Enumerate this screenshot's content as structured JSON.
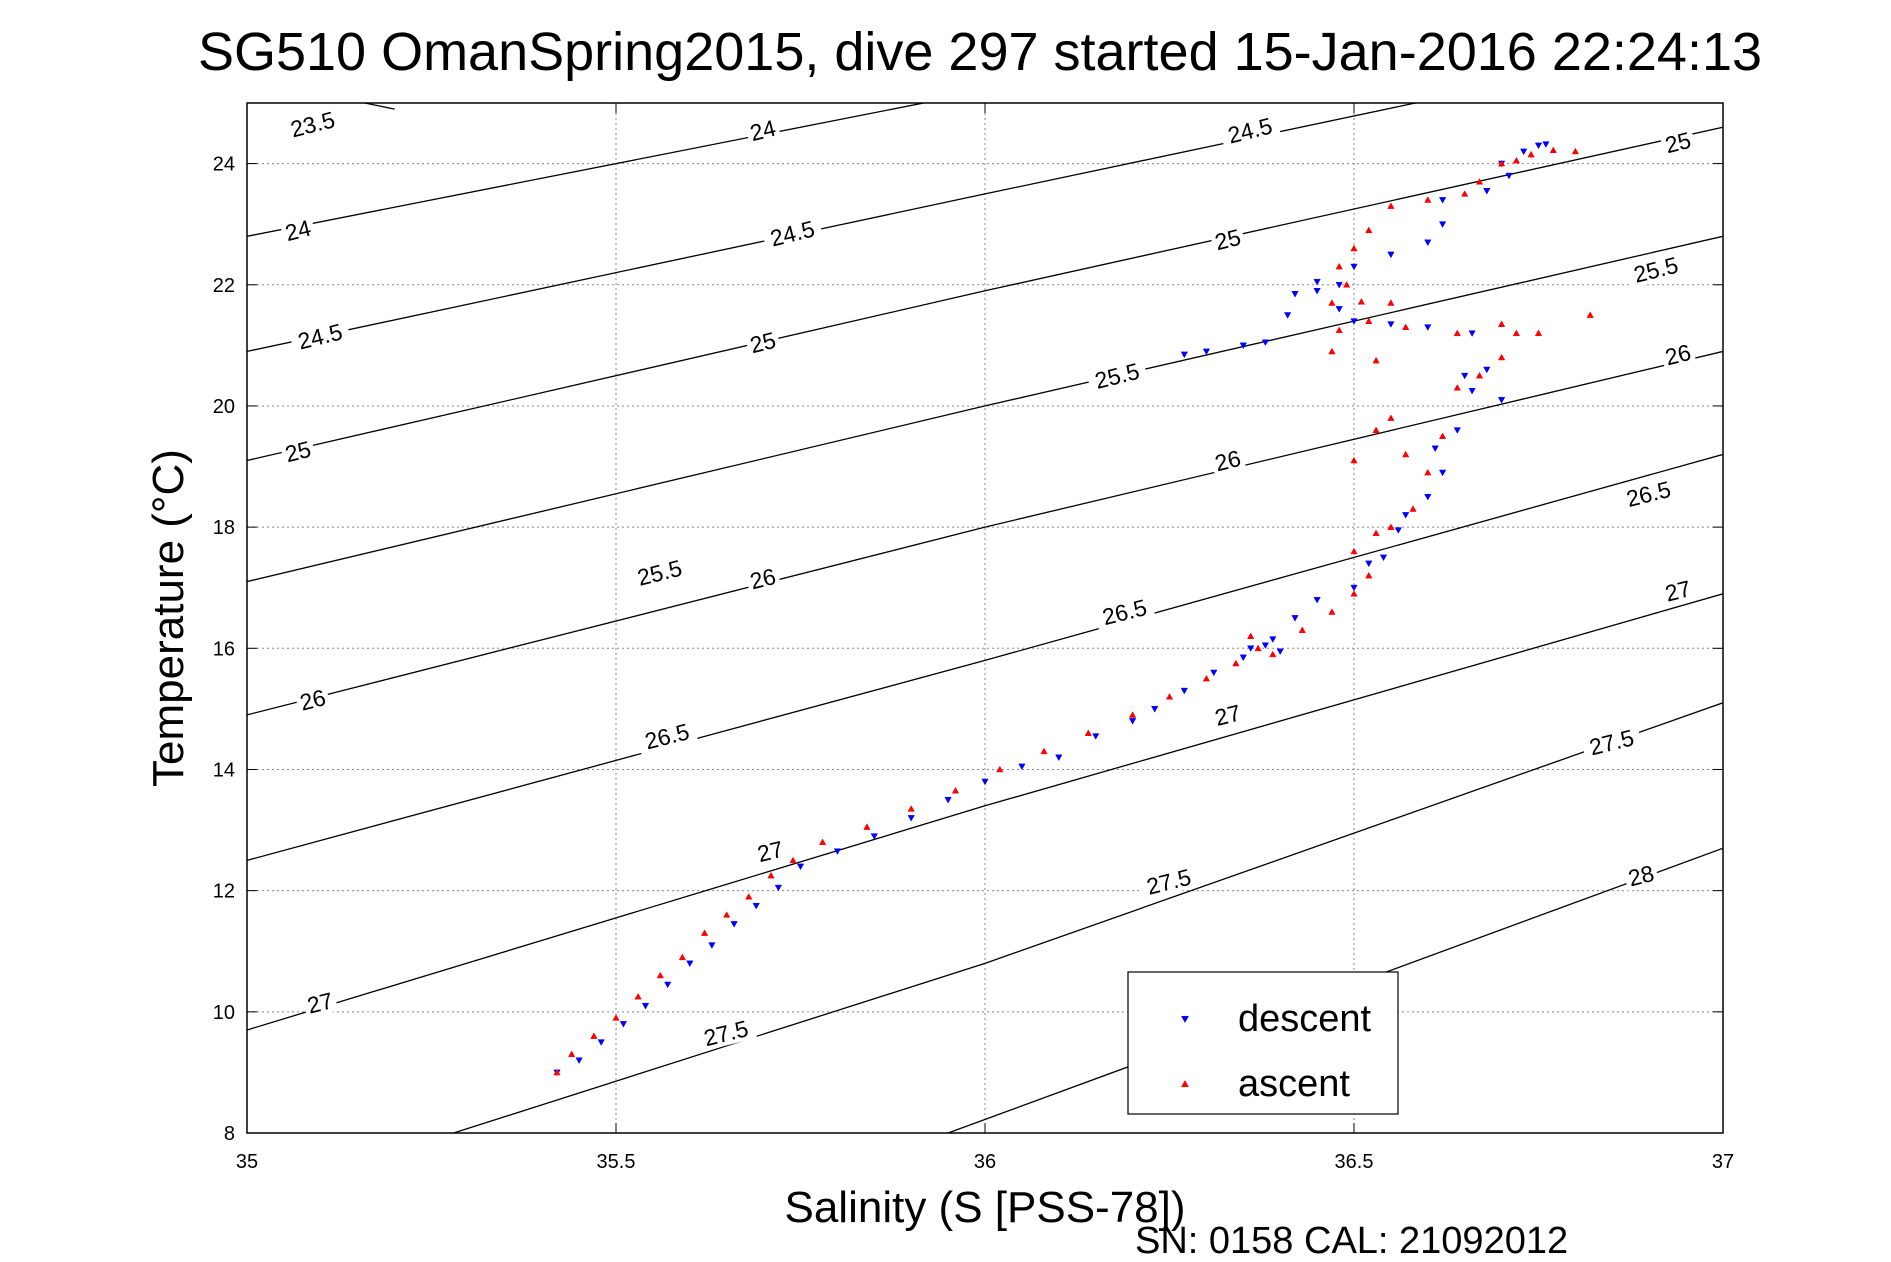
{
  "chart_data": {
    "type": "scatter",
    "title": "SG510 OmanSpring2015, dive 297 started 15-Jan-2016 22:24:13",
    "xlabel": "Salinity (S [PSS-78])",
    "ylabel": "Temperature (°C)",
    "xlim": [
      35,
      37
    ],
    "ylim": [
      8,
      25
    ],
    "xticks": [
      "35",
      "35.5",
      "36",
      "36.5",
      "37"
    ],
    "yticks": [
      "8",
      "10",
      "12",
      "14",
      "16",
      "18",
      "20",
      "22",
      "24"
    ],
    "grid": true,
    "legend_position": "lower-right",
    "footer": "SN: 0158  CAL: 21092012",
    "isopycnals": [
      {
        "label": "23.5",
        "points": [
          [
            35.0,
            25.4
          ],
          [
            35.2,
            24.9
          ]
        ]
      },
      {
        "label": "24",
        "points": [
          [
            35.0,
            22.8
          ],
          [
            36.0,
            25.2
          ]
        ]
      },
      {
        "label": "24.5",
        "points": [
          [
            35.0,
            20.9
          ],
          [
            36.0,
            23.5
          ],
          [
            36.7,
            25.3
          ]
        ]
      },
      {
        "label": "25",
        "points": [
          [
            35.0,
            19.1
          ],
          [
            36.0,
            21.9
          ],
          [
            37.0,
            24.6
          ]
        ]
      },
      {
        "label": "25.5",
        "points": [
          [
            35.0,
            17.1
          ],
          [
            36.0,
            20.0
          ],
          [
            37.0,
            22.8
          ]
        ]
      },
      {
        "label": "26",
        "points": [
          [
            35.0,
            14.9
          ],
          [
            36.0,
            18.0
          ],
          [
            37.0,
            20.9
          ]
        ]
      },
      {
        "label": "26.5",
        "points": [
          [
            35.0,
            12.5
          ],
          [
            36.0,
            15.8
          ],
          [
            37.0,
            19.2
          ]
        ]
      },
      {
        "label": "27",
        "points": [
          [
            35.0,
            9.7
          ],
          [
            36.0,
            13.4
          ],
          [
            37.0,
            16.9
          ]
        ]
      },
      {
        "label": "27.5",
        "points": [
          [
            35.28,
            8.0
          ],
          [
            36.0,
            10.8
          ],
          [
            37.0,
            15.1
          ]
        ]
      },
      {
        "label": "28",
        "points": [
          [
            35.95,
            8.0
          ],
          [
            37.0,
            12.7
          ]
        ]
      }
    ],
    "isopycnal_labels": [
      {
        "text": "23.5",
        "x": 35.09,
        "y": 24.6
      },
      {
        "text": "24",
        "x": 35.07,
        "y": 22.85
      },
      {
        "text": "24.5",
        "x": 35.1,
        "y": 21.1
      },
      {
        "text": "25",
        "x": 35.07,
        "y": 19.2
      },
      {
        "text": "25.5",
        "x": 35.56,
        "y": 17.2
      },
      {
        "text": "26",
        "x": 35.09,
        "y": 15.1
      },
      {
        "text": "26.5",
        "x": 35.57,
        "y": 14.5
      },
      {
        "text": "27",
        "x": 35.1,
        "y": 10.1
      },
      {
        "text": "27.5",
        "x": 35.65,
        "y": 9.6
      },
      {
        "text": "24",
        "x": 35.7,
        "y": 24.5
      },
      {
        "text": "24.5",
        "x": 35.74,
        "y": 22.8
      },
      {
        "text": "25",
        "x": 35.7,
        "y": 21.0
      },
      {
        "text": "25.5",
        "x": 36.18,
        "y": 20.45
      },
      {
        "text": "26",
        "x": 35.7,
        "y": 17.1
      },
      {
        "text": "26.5",
        "x": 36.19,
        "y": 16.55
      },
      {
        "text": "27",
        "x": 35.71,
        "y": 12.6
      },
      {
        "text": "27.5",
        "x": 36.25,
        "y": 12.1
      },
      {
        "text": "24.5",
        "x": 36.36,
        "y": 24.5
      },
      {
        "text": "25",
        "x": 36.33,
        "y": 22.7
      },
      {
        "text": "26",
        "x": 36.33,
        "y": 19.05
      },
      {
        "text": "27",
        "x": 36.33,
        "y": 14.85
      },
      {
        "text": "25",
        "x": 36.94,
        "y": 24.3
      },
      {
        "text": "25.5",
        "x": 36.91,
        "y": 22.2
      },
      {
        "text": "26",
        "x": 36.94,
        "y": 20.8
      },
      {
        "text": "26.5",
        "x": 36.9,
        "y": 18.5
      },
      {
        "text": "27",
        "x": 36.94,
        "y": 16.9
      },
      {
        "text": "27.5",
        "x": 36.85,
        "y": 14.4
      },
      {
        "text": "28",
        "x": 36.89,
        "y": 12.2
      }
    ],
    "series": [
      {
        "name": "descent",
        "color": "#0000ff",
        "marker": "triangle-down",
        "points": [
          [
            35.42,
            9.0
          ],
          [
            35.45,
            9.2
          ],
          [
            35.48,
            9.5
          ],
          [
            35.51,
            9.8
          ],
          [
            35.54,
            10.1
          ],
          [
            35.57,
            10.45
          ],
          [
            35.6,
            10.8
          ],
          [
            35.63,
            11.1
          ],
          [
            35.66,
            11.45
          ],
          [
            35.69,
            11.75
          ],
          [
            35.72,
            12.05
          ],
          [
            35.75,
            12.4
          ],
          [
            35.8,
            12.65
          ],
          [
            35.85,
            12.9
          ],
          [
            35.9,
            13.2
          ],
          [
            35.95,
            13.5
          ],
          [
            36.0,
            13.8
          ],
          [
            36.05,
            14.05
          ],
          [
            36.1,
            14.2
          ],
          [
            36.15,
            14.55
          ],
          [
            36.2,
            14.8
          ],
          [
            36.23,
            15.0
          ],
          [
            36.27,
            15.3
          ],
          [
            36.31,
            15.6
          ],
          [
            36.35,
            15.85
          ],
          [
            36.38,
            16.05
          ],
          [
            36.39,
            16.15
          ],
          [
            36.36,
            16.0
          ],
          [
            36.4,
            15.95
          ],
          [
            36.42,
            16.5
          ],
          [
            36.45,
            16.8
          ],
          [
            36.5,
            17.0
          ],
          [
            36.52,
            17.4
          ],
          [
            36.54,
            17.5
          ],
          [
            36.56,
            17.95
          ],
          [
            36.57,
            18.2
          ],
          [
            36.6,
            18.5
          ],
          [
            36.62,
            18.9
          ],
          [
            36.61,
            19.3
          ],
          [
            36.64,
            19.6
          ],
          [
            36.65,
            20.5
          ],
          [
            36.66,
            20.25
          ],
          [
            36.7,
            20.1
          ],
          [
            36.68,
            20.6
          ],
          [
            36.66,
            21.2
          ],
          [
            36.6,
            21.3
          ],
          [
            36.55,
            21.35
          ],
          [
            36.5,
            21.4
          ],
          [
            36.48,
            21.6
          ],
          [
            36.45,
            21.9
          ],
          [
            36.42,
            21.85
          ],
          [
            36.38,
            21.05
          ],
          [
            36.35,
            21.0
          ],
          [
            36.3,
            20.9
          ],
          [
            36.27,
            20.85
          ],
          [
            36.41,
            21.5
          ],
          [
            36.45,
            22.05
          ],
          [
            36.48,
            22.0
          ],
          [
            36.5,
            22.3
          ],
          [
            36.55,
            22.5
          ],
          [
            36.6,
            22.7
          ],
          [
            36.62,
            23.0
          ],
          [
            36.62,
            23.4
          ],
          [
            36.68,
            23.55
          ],
          [
            36.71,
            23.8
          ],
          [
            36.7,
            24.0
          ],
          [
            36.73,
            24.2
          ],
          [
            36.75,
            24.3
          ],
          [
            36.76,
            24.32
          ]
        ]
      },
      {
        "name": "ascent",
        "color": "#ff0000",
        "marker": "triangle-up",
        "points": [
          [
            35.42,
            9.0
          ],
          [
            35.44,
            9.3
          ],
          [
            35.47,
            9.6
          ],
          [
            35.5,
            9.9
          ],
          [
            35.53,
            10.25
          ],
          [
            35.56,
            10.6
          ],
          [
            35.59,
            10.9
          ],
          [
            35.62,
            11.3
          ],
          [
            35.65,
            11.6
          ],
          [
            35.68,
            11.9
          ],
          [
            35.71,
            12.25
          ],
          [
            35.74,
            12.5
          ],
          [
            35.78,
            12.8
          ],
          [
            35.84,
            13.05
          ],
          [
            35.9,
            13.35
          ],
          [
            35.96,
            13.65
          ],
          [
            36.02,
            14.0
          ],
          [
            36.08,
            14.3
          ],
          [
            36.14,
            14.6
          ],
          [
            36.2,
            14.9
          ],
          [
            36.25,
            15.2
          ],
          [
            36.3,
            15.5
          ],
          [
            36.34,
            15.75
          ],
          [
            36.37,
            16.0
          ],
          [
            36.36,
            16.2
          ],
          [
            36.39,
            15.9
          ],
          [
            36.43,
            16.3
          ],
          [
            36.47,
            16.6
          ],
          [
            36.5,
            16.9
          ],
          [
            36.52,
            17.2
          ],
          [
            36.5,
            17.6
          ],
          [
            36.53,
            17.9
          ],
          [
            36.55,
            18.0
          ],
          [
            36.58,
            18.3
          ],
          [
            36.6,
            18.9
          ],
          [
            36.57,
            19.2
          ],
          [
            36.53,
            19.6
          ],
          [
            36.5,
            19.1
          ],
          [
            36.55,
            19.8
          ],
          [
            36.62,
            19.5
          ],
          [
            36.64,
            20.3
          ],
          [
            36.67,
            20.5
          ],
          [
            36.7,
            20.8
          ],
          [
            36.72,
            21.2
          ],
          [
            36.7,
            21.35
          ],
          [
            36.64,
            21.2
          ],
          [
            36.57,
            21.3
          ],
          [
            36.52,
            21.4
          ],
          [
            36.48,
            21.25
          ],
          [
            36.47,
            20.9
          ],
          [
            36.53,
            20.75
          ],
          [
            36.55,
            21.7
          ],
          [
            36.51,
            21.72
          ],
          [
            36.47,
            21.7
          ],
          [
            36.49,
            22.0
          ],
          [
            36.48,
            22.3
          ],
          [
            36.5,
            22.6
          ],
          [
            36.52,
            22.9
          ],
          [
            36.55,
            23.3
          ],
          [
            36.6,
            23.4
          ],
          [
            36.65,
            23.5
          ],
          [
            36.67,
            23.7
          ],
          [
            36.7,
            24.0
          ],
          [
            36.72,
            24.05
          ],
          [
            36.74,
            24.15
          ],
          [
            36.77,
            24.22
          ],
          [
            36.8,
            24.2
          ],
          [
            36.82,
            21.5
          ],
          [
            36.75,
            21.2
          ]
        ]
      }
    ]
  }
}
